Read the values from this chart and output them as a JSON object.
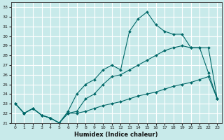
{
  "xlabel": "Humidex (Indice chaleur)",
  "bg_color": "#c8eaea",
  "grid_color": "#ffffff",
  "line_color": "#006868",
  "xlim": [
    -0.5,
    23.5
  ],
  "ylim": [
    21,
    33.5
  ],
  "xticks": [
    0,
    1,
    2,
    3,
    4,
    5,
    6,
    7,
    8,
    9,
    10,
    11,
    12,
    13,
    14,
    15,
    16,
    17,
    18,
    19,
    20,
    21,
    22,
    23
  ],
  "yticks": [
    21,
    22,
    23,
    24,
    25,
    26,
    27,
    28,
    29,
    30,
    31,
    32,
    33
  ],
  "series_wavy_x": [
    0,
    1,
    2,
    3,
    4,
    5,
    6,
    7,
    8,
    9,
    10,
    11,
    12,
    13,
    14,
    15,
    16,
    17,
    18,
    19,
    20,
    21,
    22,
    23
  ],
  "series_wavy_y": [
    23.0,
    22.0,
    22.5,
    21.8,
    21.5,
    21.0,
    22.2,
    24.0,
    25.0,
    25.5,
    26.5,
    27.0,
    26.5,
    30.5,
    31.8,
    32.5,
    31.2,
    30.5,
    30.2,
    30.2,
    28.8,
    28.8,
    26.2,
    23.5
  ],
  "series_upper_x": [
    0,
    1,
    2,
    3,
    4,
    5,
    6,
    7,
    8,
    9,
    10,
    11,
    12,
    13,
    14,
    15,
    16,
    17,
    18,
    19,
    20,
    21,
    22,
    23
  ],
  "series_upper_y": [
    23.0,
    22.0,
    22.5,
    21.8,
    21.5,
    21.0,
    22.0,
    22.2,
    23.5,
    24.0,
    25.0,
    25.8,
    26.0,
    26.5,
    27.0,
    27.5,
    28.0,
    28.5,
    28.8,
    29.0,
    28.8,
    28.8,
    28.8,
    23.5
  ],
  "series_lower_x": [
    0,
    1,
    2,
    3,
    4,
    5,
    6,
    7,
    8,
    9,
    10,
    11,
    12,
    13,
    14,
    15,
    16,
    17,
    18,
    19,
    20,
    21,
    22,
    23
  ],
  "series_lower_y": [
    23.0,
    22.0,
    22.5,
    21.8,
    21.5,
    21.0,
    22.0,
    22.0,
    22.2,
    22.5,
    22.8,
    23.0,
    23.2,
    23.5,
    23.8,
    24.0,
    24.2,
    24.5,
    24.8,
    25.0,
    25.2,
    25.5,
    25.8,
    23.5
  ]
}
